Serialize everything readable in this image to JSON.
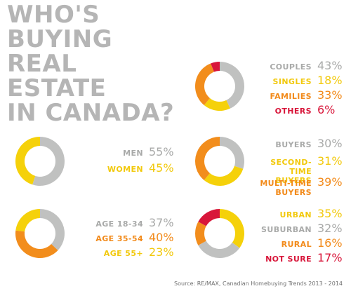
{
  "title_lines": [
    "WHO'S",
    "BUYING",
    "REAL",
    "ESTATE",
    "IN CANADA?"
  ],
  "source": "Source: RE/MAX, Canadian Homebuying Trends 2013 - 2014",
  "colors": {
    "gray": "#c0c1c0",
    "yellow": "#f5d10a",
    "orange": "#f28d1c",
    "red": "#d8163a"
  },
  "chart_data": [
    {
      "type": "pie",
      "title": "",
      "categories": [
        "COUPLES",
        "SINGLES",
        "FAMILIES",
        "OTHERS"
      ],
      "values": [
        43,
        18,
        33,
        6
      ],
      "value_labels": [
        "43%",
        "18%",
        "33%",
        "6%"
      ],
      "colors": [
        "gray",
        "yellow",
        "orange",
        "red"
      ]
    },
    {
      "type": "pie",
      "title": "",
      "categories": [
        "MEN",
        "WOMEN"
      ],
      "values": [
        55,
        45
      ],
      "value_labels": [
        "55%",
        "45%"
      ],
      "colors": [
        "gray",
        "yellow"
      ]
    },
    {
      "type": "pie",
      "title": "",
      "categories": [
        "BUYERS",
        "SECOND-TIME BUYERS",
        "MULTI-TIME BUYERS"
      ],
      "values": [
        30,
        31,
        39
      ],
      "value_labels": [
        "30%",
        "31%",
        "39%"
      ],
      "colors": [
        "gray",
        "yellow",
        "orange"
      ]
    },
    {
      "type": "pie",
      "title": "",
      "categories": [
        "AGE 18-34",
        "AGE 35-54",
        "AGE 55+"
      ],
      "values": [
        37,
        40,
        23
      ],
      "value_labels": [
        "37%",
        "40%",
        "23%"
      ],
      "colors": [
        "gray",
        "orange",
        "yellow"
      ]
    },
    {
      "type": "pie",
      "title": "",
      "categories": [
        "URBAN",
        "SUBURBAN",
        "RURAL",
        "NOT SURE"
      ],
      "values": [
        35,
        32,
        16,
        17
      ],
      "value_labels": [
        "35%",
        "32%",
        "16%",
        "17%"
      ],
      "colors": [
        "yellow",
        "gray",
        "orange",
        "red"
      ]
    }
  ]
}
